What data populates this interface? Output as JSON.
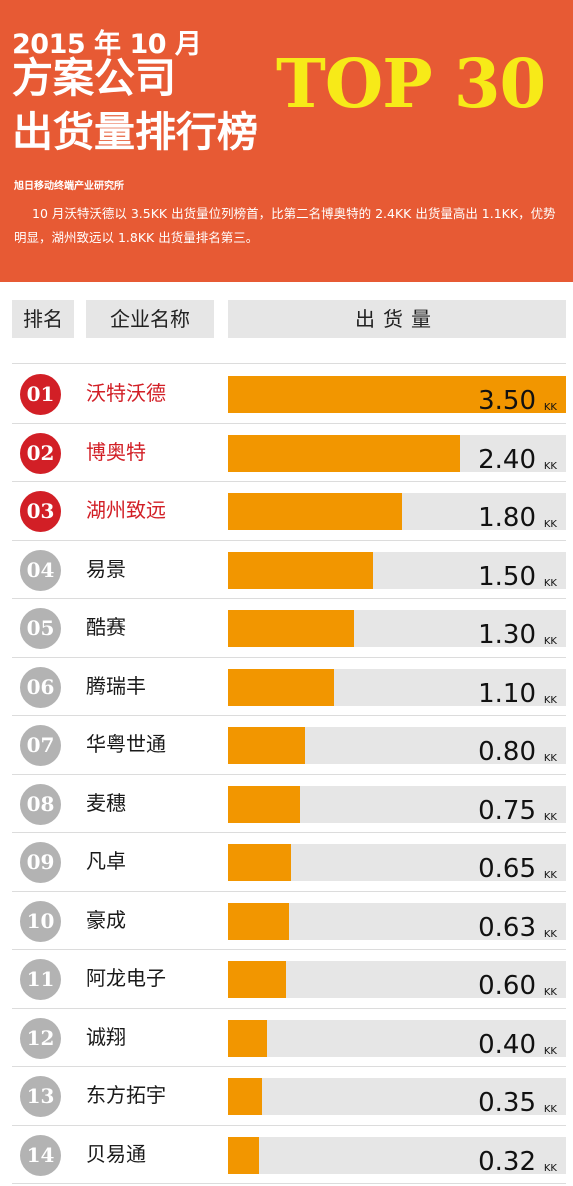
{
  "header": {
    "year_month": "2015 年 10 月",
    "title_line1": "方案公司",
    "title_line2": "出货量排行榜",
    "top_label": "TOP 30",
    "source": "旭日移动终端产业研究所",
    "description": "10 月沃特沃德以 3.5KK 出货量位列榜首，比第二名博奥特的 2.4KK 出货量高出 1.1KK，优势明显，湖州致远以 1.8KK 出货量排名第三。",
    "background_color": "#e75a34",
    "top_color": "#f7ea18"
  },
  "table_header": {
    "rank": "排名",
    "company": "企业名称",
    "volume": "出货量"
  },
  "colors": {
    "bar": "#f29600",
    "bar_track": "#e6e6e6",
    "top_rank": "#d21f26",
    "normal_rank": "#b3b3b3"
  },
  "chart_data": {
    "type": "bar",
    "orientation": "horizontal",
    "title": "方案公司出货量排行榜",
    "unit": "KK",
    "xlim": [
      0,
      3.5
    ],
    "rows": [
      {
        "rank": "01",
        "name": "沃特沃德",
        "value": "3.50",
        "unit": "KK",
        "highlight": true
      },
      {
        "rank": "02",
        "name": "博奥特",
        "value": "2.40",
        "unit": "KK",
        "highlight": true
      },
      {
        "rank": "03",
        "name": "湖州致远",
        "value": "1.80",
        "unit": "KK",
        "highlight": true
      },
      {
        "rank": "04",
        "name": "易景",
        "value": "1.50",
        "unit": "KK",
        "highlight": false
      },
      {
        "rank": "05",
        "name": "酷赛",
        "value": "1.30",
        "unit": "KK",
        "highlight": false
      },
      {
        "rank": "06",
        "name": "腾瑞丰",
        "value": "1.10",
        "unit": "KK",
        "highlight": false
      },
      {
        "rank": "07",
        "name": "华粤世通",
        "value": "0.80",
        "unit": "KK",
        "highlight": false
      },
      {
        "rank": "08",
        "name": "麦穗",
        "value": "0.75",
        "unit": "KK",
        "highlight": false
      },
      {
        "rank": "09",
        "name": "凡卓",
        "value": "0.65",
        "unit": "KK",
        "highlight": false
      },
      {
        "rank": "10",
        "name": "豪成",
        "value": "0.63",
        "unit": "KK",
        "highlight": false
      },
      {
        "rank": "11",
        "name": "阿龙电子",
        "value": "0.60",
        "unit": "KK",
        "highlight": false
      },
      {
        "rank": "12",
        "name": "诚翔",
        "value": "0.40",
        "unit": "KK",
        "highlight": false
      },
      {
        "rank": "13",
        "name": "东方拓宇",
        "value": "0.35",
        "unit": "KK",
        "highlight": false
      },
      {
        "rank": "14",
        "name": "贝易通",
        "value": "0.32",
        "unit": "KK",
        "highlight": false
      }
    ]
  }
}
